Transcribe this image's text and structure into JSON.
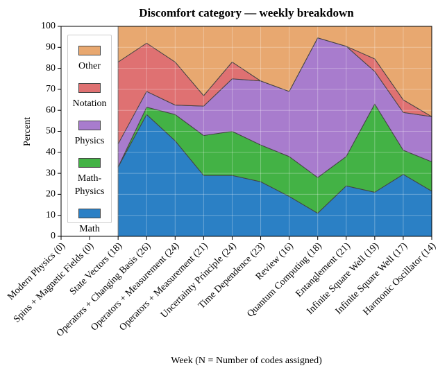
{
  "chart_data": {
    "type": "stacked_area",
    "title": "Discomfort category — weekly breakdown",
    "xlabel": "Week (N = Number of codes assigned)",
    "ylabel": "Percent",
    "categories": [
      "Modern Physics (0)",
      "Spins + Magnetic Fields (0)",
      "State Vectors (18)",
      "Operators + Changing Basis (26)",
      "Operators + Measurement (24)",
      "Operators + Measurement (21)",
      "Uncertainty Principle (24)",
      "Time Dependence (23)",
      "Review (16)",
      "Quantum Computing (18)",
      "Entanglement (21)",
      "Infinite Square Well (19)",
      "Infinite Square Well (17)",
      "Harmonic Oscillator (14)"
    ],
    "series": [
      {
        "name": "Math",
        "color": "#2b80c5",
        "values": [
          null,
          null,
          33,
          58,
          45.5,
          29,
          29,
          26,
          19,
          11,
          24,
          21,
          29.5,
          21.5
        ]
      },
      {
        "name": "Math-Physics",
        "color": "#43b245",
        "values": [
          null,
          null,
          0,
          3.5,
          12.5,
          19,
          21,
          17.5,
          19,
          17,
          14,
          42,
          11.5,
          14
        ]
      },
      {
        "name": "Physics",
        "color": "#a87ccd",
        "values": [
          null,
          null,
          11,
          7.5,
          4.5,
          14,
          25,
          30.5,
          31,
          66.5,
          52.5,
          15.5,
          18,
          21.5
        ]
      },
      {
        "name": "Notation",
        "color": "#df7172",
        "values": [
          null,
          null,
          39,
          23,
          20.5,
          5,
          8,
          0,
          0,
          0,
          0,
          6,
          6,
          0
        ]
      },
      {
        "name": "Other",
        "color": "#e8a870",
        "values": [
          null,
          null,
          17,
          8,
          17,
          33,
          17,
          26,
          31,
          5.5,
          9.5,
          15.5,
          35,
          43
        ]
      }
    ],
    "ylim": [
      0,
      100
    ],
    "yticks": [
      0,
      10,
      20,
      30,
      40,
      50,
      60,
      70,
      80,
      90,
      100
    ],
    "grid": true,
    "legend": "upper left"
  }
}
